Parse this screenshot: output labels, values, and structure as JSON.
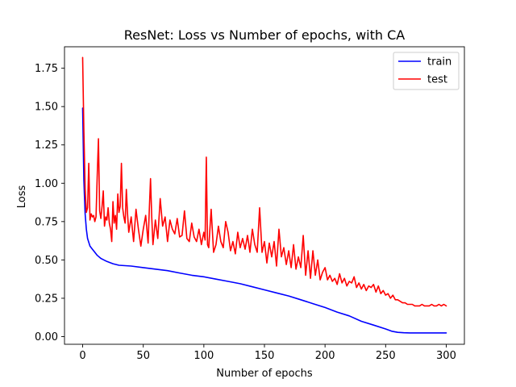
{
  "chart_data": {
    "type": "line",
    "title": "ResNet: Loss vs Number of epochs, with CA",
    "xlabel": "Number of epochs",
    "ylabel": "Loss",
    "xlim": [
      -15,
      315
    ],
    "ylim": [
      -0.05,
      1.89
    ],
    "xticks": [
      0,
      50,
      100,
      150,
      200,
      250,
      300
    ],
    "xtick_labels": [
      "0",
      "50",
      "100",
      "150",
      "200",
      "250",
      "300"
    ],
    "yticks": [
      0.0,
      0.25,
      0.5,
      0.75,
      1.0,
      1.25,
      1.5,
      1.75
    ],
    "ytick_labels": [
      "0.00",
      "0.25",
      "0.50",
      "0.75",
      "1.00",
      "1.25",
      "1.50",
      "1.75"
    ],
    "grid": false,
    "legend_position": "top-right",
    "series": [
      {
        "name": "train",
        "color": "#0000ff",
        "x": [
          0,
          1,
          2,
          3,
          4,
          6,
          8,
          10,
          12,
          15,
          20,
          25,
          30,
          40,
          50,
          60,
          70,
          80,
          90,
          100,
          110,
          120,
          130,
          140,
          150,
          160,
          170,
          180,
          190,
          200,
          210,
          220,
          230,
          240,
          250,
          255,
          260,
          265,
          270,
          280,
          290,
          300
        ],
        "y": [
          1.49,
          1.02,
          0.8,
          0.7,
          0.64,
          0.59,
          0.57,
          0.55,
          0.53,
          0.51,
          0.49,
          0.475,
          0.465,
          0.46,
          0.45,
          0.44,
          0.43,
          0.415,
          0.4,
          0.39,
          0.375,
          0.36,
          0.345,
          0.325,
          0.305,
          0.285,
          0.265,
          0.24,
          0.215,
          0.19,
          0.16,
          0.135,
          0.1,
          0.075,
          0.05,
          0.035,
          0.028,
          0.025,
          0.024,
          0.024,
          0.024,
          0.024
        ]
      },
      {
        "name": "test",
        "color": "#ff0000",
        "x": [
          0,
          1,
          2,
          3,
          4,
          5,
          6,
          7,
          8,
          9,
          10,
          11,
          12,
          13,
          14,
          15,
          16,
          17,
          18,
          19,
          20,
          21,
          22,
          23,
          24,
          25,
          26,
          27,
          28,
          29,
          30,
          31,
          32,
          33,
          34,
          35,
          36,
          37,
          38,
          40,
          42,
          44,
          46,
          48,
          50,
          52,
          54,
          55,
          56,
          57,
          58,
          60,
          62,
          64,
          66,
          68,
          70,
          72,
          74,
          76,
          78,
          80,
          82,
          84,
          86,
          88,
          90,
          92,
          94,
          96,
          98,
          100,
          101,
          102,
          103,
          104,
          106,
          108,
          110,
          112,
          114,
          116,
          118,
          120,
          122,
          124,
          126,
          128,
          130,
          132,
          134,
          136,
          138,
          140,
          142,
          144,
          146,
          148,
          150,
          152,
          154,
          156,
          158,
          160,
          162,
          164,
          166,
          168,
          170,
          172,
          174,
          176,
          178,
          180,
          182,
          184,
          186,
          188,
          190,
          192,
          194,
          196,
          198,
          200,
          202,
          204,
          206,
          208,
          210,
          212,
          214,
          216,
          218,
          220,
          222,
          224,
          226,
          228,
          230,
          232,
          234,
          236,
          238,
          240,
          242,
          244,
          246,
          248,
          250,
          252,
          254,
          256,
          258,
          260,
          262,
          264,
          266,
          268,
          270,
          272,
          274,
          276,
          278,
          280,
          282,
          284,
          286,
          288,
          290,
          292,
          294,
          296,
          298,
          300
        ],
        "y": [
          1.82,
          1.35,
          0.96,
          0.81,
          0.84,
          1.13,
          0.76,
          0.8,
          0.78,
          0.79,
          0.75,
          0.78,
          1.05,
          1.29,
          0.82,
          0.77,
          0.85,
          0.95,
          0.72,
          0.78,
          0.76,
          0.84,
          0.74,
          0.7,
          0.62,
          0.88,
          0.74,
          0.79,
          0.7,
          0.93,
          0.81,
          0.85,
          1.13,
          0.84,
          0.78,
          0.74,
          0.96,
          0.8,
          0.68,
          0.78,
          0.62,
          0.83,
          0.7,
          0.59,
          0.7,
          0.79,
          0.61,
          0.83,
          1.03,
          0.78,
          0.6,
          0.76,
          0.64,
          0.9,
          0.72,
          0.78,
          0.62,
          0.76,
          0.7,
          0.67,
          0.77,
          0.65,
          0.66,
          0.82,
          0.64,
          0.62,
          0.74,
          0.65,
          0.62,
          0.7,
          0.6,
          0.68,
          0.63,
          1.17,
          0.6,
          0.58,
          0.83,
          0.55,
          0.6,
          0.72,
          0.62,
          0.58,
          0.75,
          0.68,
          0.56,
          0.62,
          0.54,
          0.68,
          0.58,
          0.64,
          0.57,
          0.66,
          0.55,
          0.7,
          0.6,
          0.55,
          0.84,
          0.55,
          0.62,
          0.48,
          0.61,
          0.52,
          0.62,
          0.46,
          0.7,
          0.52,
          0.58,
          0.47,
          0.56,
          0.45,
          0.6,
          0.44,
          0.52,
          0.45,
          0.66,
          0.4,
          0.56,
          0.38,
          0.56,
          0.4,
          0.5,
          0.37,
          0.42,
          0.45,
          0.37,
          0.4,
          0.36,
          0.38,
          0.34,
          0.41,
          0.35,
          0.38,
          0.33,
          0.36,
          0.35,
          0.39,
          0.32,
          0.35,
          0.31,
          0.34,
          0.3,
          0.33,
          0.32,
          0.34,
          0.29,
          0.33,
          0.28,
          0.3,
          0.27,
          0.28,
          0.25,
          0.27,
          0.24,
          0.24,
          0.23,
          0.22,
          0.22,
          0.21,
          0.21,
          0.21,
          0.2,
          0.2,
          0.2,
          0.21,
          0.2,
          0.2,
          0.2,
          0.21,
          0.2,
          0.2,
          0.21,
          0.2,
          0.21,
          0.2
        ]
      }
    ]
  }
}
